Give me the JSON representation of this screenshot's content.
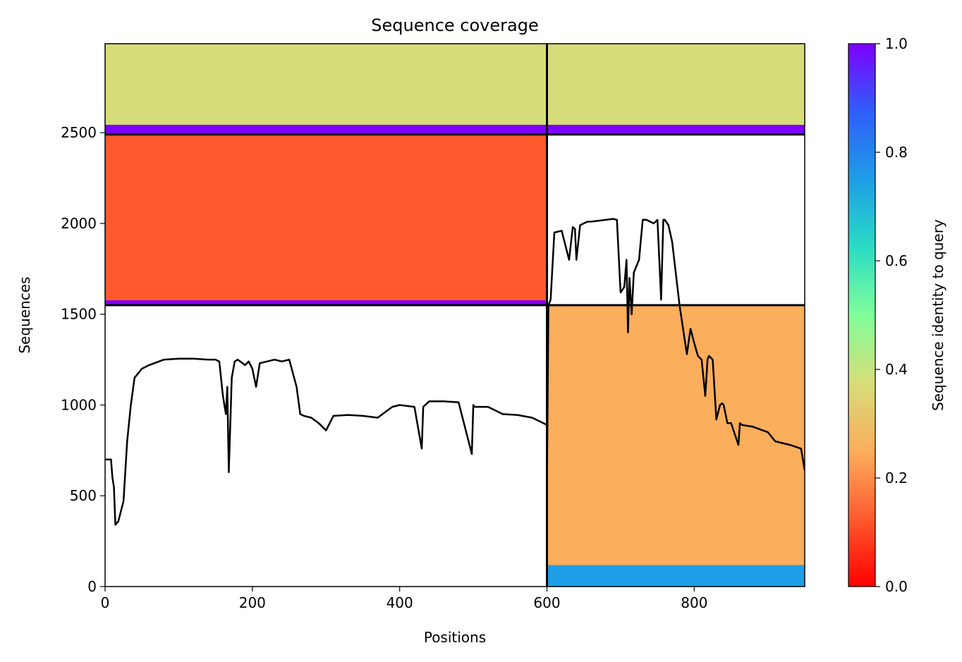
{
  "chart_data": {
    "type": "heatmap",
    "title": "Sequence coverage",
    "xlabel": "Positions",
    "ylabel": "Sequences",
    "xlim": [
      0,
      950
    ],
    "ylim": [
      0,
      2990
    ],
    "xticks": [
      0,
      200,
      400,
      600,
      800
    ],
    "yticks": [
      0,
      500,
      1000,
      1500,
      2000,
      2500
    ],
    "colorbar": {
      "label": "Sequence identity to query",
      "range": [
        0,
        1
      ],
      "ticks": [
        "0.0",
        "0.2",
        "0.4",
        "0.6",
        "0.8",
        "1.0"
      ],
      "colormap": "rainbow"
    },
    "blocks": [
      {
        "x": [
          0,
          600
        ],
        "y": [
          1550,
          2490
        ],
        "identity_top": 1.0,
        "identity_bottom": 0.1
      },
      {
        "x": [
          0,
          600
        ],
        "y": [
          2490,
          2990
        ],
        "identity_top": 1.0,
        "identity_bottom": 0.3
      },
      {
        "x": [
          600,
          950
        ],
        "y": [
          2490,
          2990
        ],
        "identity_top": 1.0,
        "identity_bottom": 0.3
      },
      {
        "x": [
          600,
          950
        ],
        "y": [
          0,
          1550
        ],
        "identity_top": 0.85,
        "identity_bottom": 0.2
      }
    ],
    "block_dividers": {
      "x": [
        600
      ],
      "y": [
        1550,
        2490
      ]
    },
    "coverage_line": [
      {
        "x": [
          0,
          8,
          10,
          12,
          14,
          18,
          25,
          30,
          35,
          40,
          50,
          60,
          80,
          100,
          120,
          140,
          150,
          155,
          160,
          164,
          166,
          168,
          172,
          176,
          180,
          190,
          195,
          200,
          205,
          210,
          220,
          230,
          240,
          250,
          260,
          265,
          270,
          280,
          290,
          300,
          310,
          330,
          350,
          370,
          390,
          400,
          420,
          430,
          432,
          440,
          460,
          480,
          498,
          500,
          502,
          520,
          540,
          560,
          580,
          600
        ],
        "y": [
          700,
          700,
          600,
          550,
          340,
          360,
          470,
          800,
          1000,
          1150,
          1200,
          1220,
          1250,
          1255,
          1255,
          1250,
          1250,
          1240,
          1050,
          950,
          1100,
          630,
          1150,
          1240,
          1250,
          1220,
          1240,
          1200,
          1100,
          1230,
          1240,
          1250,
          1240,
          1250,
          1100,
          950,
          940,
          930,
          900,
          860,
          940,
          945,
          940,
          930,
          990,
          1000,
          990,
          760,
          990,
          1020,
          1020,
          1015,
          730,
          1000,
          990,
          990,
          950,
          945,
          930,
          890
        ]
      },
      {
        "x": [
          600,
          602,
          605,
          610,
          620,
          630,
          635,
          638,
          640,
          645,
          650,
          655,
          660,
          670,
          680,
          690,
          695,
          700,
          705,
          708,
          710,
          712,
          715,
          718,
          720,
          725,
          730,
          735,
          740,
          745,
          750,
          755,
          758,
          760,
          765,
          770,
          780,
          790,
          795,
          800,
          805,
          810,
          815,
          818,
          820,
          825,
          830,
          835,
          838,
          840,
          845,
          850,
          860,
          862,
          865,
          880,
          900,
          910,
          930,
          945,
          950
        ],
        "y": [
          580,
          1550,
          1580,
          1950,
          1960,
          1800,
          1980,
          1970,
          1800,
          1990,
          2000,
          2010,
          2010,
          2015,
          2020,
          2025,
          2020,
          1620,
          1650,
          1800,
          1400,
          1700,
          1500,
          1730,
          1750,
          1800,
          2020,
          2020,
          2010,
          2000,
          2020,
          1580,
          2020,
          2020,
          1990,
          1900,
          1550,
          1280,
          1420,
          1340,
          1270,
          1250,
          1050,
          1250,
          1270,
          1250,
          920,
          1000,
          1010,
          1000,
          900,
          900,
          780,
          900,
          890,
          880,
          850,
          800,
          780,
          760,
          640
        ]
      }
    ]
  }
}
